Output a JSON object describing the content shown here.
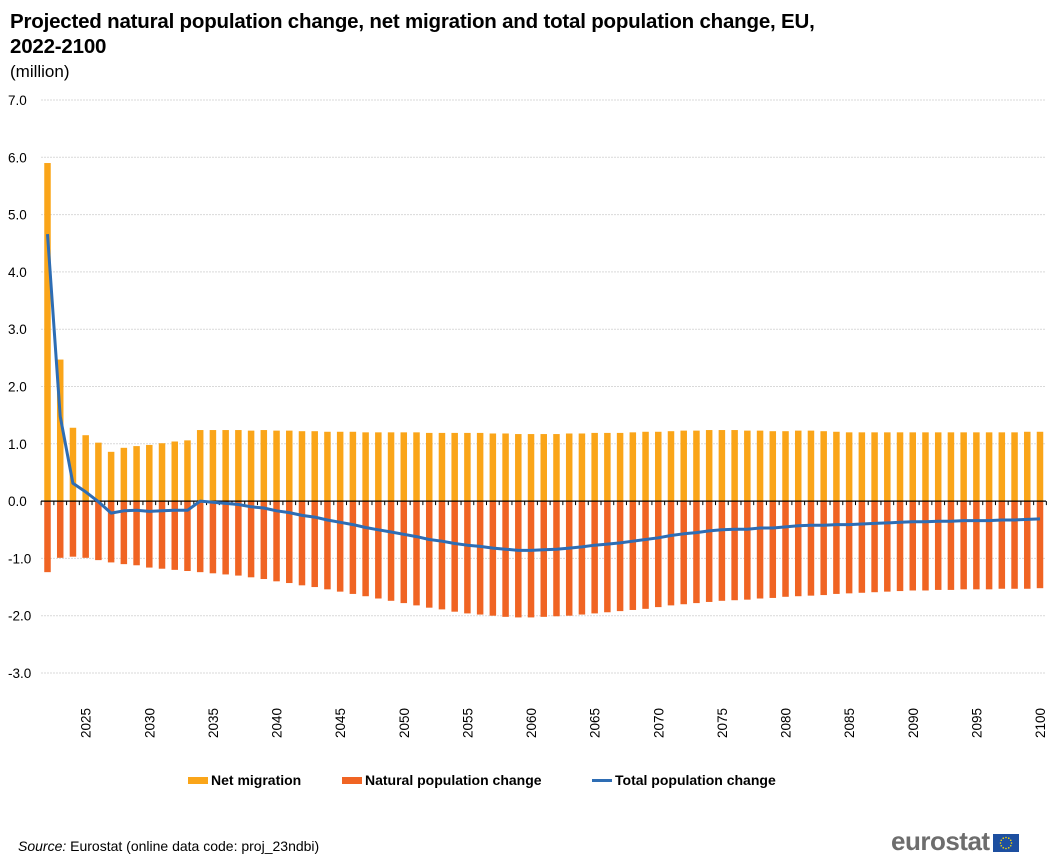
{
  "header": {
    "title": "Projected natural population change, net migration and total population change, EU, 2022-2100",
    "subtitle": "(million)"
  },
  "legend": {
    "items": [
      {
        "label": "Net migration",
        "type": "bar",
        "color": "#faa519"
      },
      {
        "label": "Natural population change",
        "type": "bar",
        "color": "#f06423"
      },
      {
        "label": "Total population change",
        "type": "line",
        "color": "#2e6db4"
      }
    ]
  },
  "footer": {
    "source_label": "Source:",
    "source_text": " Eurostat (online data code: proj_23ndbi)",
    "logo_text": "eurostat"
  },
  "chart_data": {
    "type": "bar",
    "title": "Projected natural population change, net migration and total population change, EU, 2022-2100",
    "subtitle": "(million)",
    "xlabel": "",
    "ylabel": "",
    "ylim": [
      -3.0,
      7.0
    ],
    "yticks": [
      "7.0",
      "6.0",
      "5.0",
      "4.0",
      "3.0",
      "2.0",
      "1.0",
      "0.0",
      "-1.0",
      "-2.0",
      "-3.0"
    ],
    "xtick_labels": [
      "2025",
      "2030",
      "2035",
      "2040",
      "2045",
      "2050",
      "2055",
      "2060",
      "2065",
      "2070",
      "2075",
      "2080",
      "2085",
      "2090",
      "2095",
      "2100"
    ],
    "grid": true,
    "legend_position": "bottom",
    "x": [
      2022,
      2023,
      2024,
      2025,
      2026,
      2027,
      2028,
      2029,
      2030,
      2031,
      2032,
      2033,
      2034,
      2035,
      2036,
      2037,
      2038,
      2039,
      2040,
      2041,
      2042,
      2043,
      2044,
      2045,
      2046,
      2047,
      2048,
      2049,
      2050,
      2051,
      2052,
      2053,
      2054,
      2055,
      2056,
      2057,
      2058,
      2059,
      2060,
      2061,
      2062,
      2063,
      2064,
      2065,
      2066,
      2067,
      2068,
      2069,
      2070,
      2071,
      2072,
      2073,
      2074,
      2075,
      2076,
      2077,
      2078,
      2079,
      2080,
      2081,
      2082,
      2083,
      2084,
      2085,
      2086,
      2087,
      2088,
      2089,
      2090,
      2091,
      2092,
      2093,
      2094,
      2095,
      2096,
      2097,
      2098,
      2099,
      2100
    ],
    "series": [
      {
        "name": "Net migration",
        "type": "bar",
        "color": "#faa519",
        "values": [
          5.9,
          2.47,
          1.28,
          1.15,
          1.02,
          0.86,
          0.93,
          0.96,
          0.98,
          1.01,
          1.04,
          1.06,
          1.24,
          1.24,
          1.24,
          1.24,
          1.23,
          1.24,
          1.23,
          1.23,
          1.22,
          1.22,
          1.21,
          1.21,
          1.21,
          1.2,
          1.2,
          1.2,
          1.2,
          1.2,
          1.19,
          1.19,
          1.19,
          1.19,
          1.19,
          1.18,
          1.18,
          1.17,
          1.17,
          1.17,
          1.17,
          1.18,
          1.18,
          1.19,
          1.19,
          1.19,
          1.2,
          1.21,
          1.21,
          1.22,
          1.23,
          1.23,
          1.24,
          1.24,
          1.24,
          1.23,
          1.23,
          1.22,
          1.22,
          1.23,
          1.23,
          1.22,
          1.21,
          1.2,
          1.2,
          1.2,
          1.2,
          1.2,
          1.2,
          1.2,
          1.2,
          1.2,
          1.2,
          1.2,
          1.2,
          1.2,
          1.2,
          1.21,
          1.21
        ]
      },
      {
        "name": "Natural population change",
        "type": "bar",
        "color": "#f06423",
        "values": [
          -1.24,
          -0.99,
          -0.97,
          -0.99,
          -1.03,
          -1.07,
          -1.1,
          -1.12,
          -1.16,
          -1.18,
          -1.2,
          -1.22,
          -1.24,
          -1.26,
          -1.28,
          -1.3,
          -1.33,
          -1.36,
          -1.4,
          -1.43,
          -1.47,
          -1.5,
          -1.54,
          -1.58,
          -1.62,
          -1.66,
          -1.7,
          -1.74,
          -1.78,
          -1.82,
          -1.86,
          -1.89,
          -1.93,
          -1.96,
          -1.98,
          -2.0,
          -2.02,
          -2.03,
          -2.03,
          -2.02,
          -2.01,
          -2.0,
          -1.98,
          -1.96,
          -1.94,
          -1.92,
          -1.9,
          -1.88,
          -1.85,
          -1.82,
          -1.8,
          -1.78,
          -1.76,
          -1.74,
          -1.73,
          -1.72,
          -1.7,
          -1.69,
          -1.67,
          -1.66,
          -1.65,
          -1.64,
          -1.62,
          -1.61,
          -1.6,
          -1.59,
          -1.58,
          -1.57,
          -1.56,
          -1.56,
          -1.55,
          -1.55,
          -1.54,
          -1.54,
          -1.54,
          -1.53,
          -1.53,
          -1.53,
          -1.52
        ]
      },
      {
        "name": "Total population change",
        "type": "line",
        "color": "#2e6db4",
        "values": [
          4.66,
          1.48,
          0.31,
          0.16,
          -0.01,
          -0.21,
          -0.17,
          -0.16,
          -0.18,
          -0.17,
          -0.16,
          -0.16,
          0.0,
          -0.02,
          -0.04,
          -0.06,
          -0.1,
          -0.12,
          -0.17,
          -0.2,
          -0.25,
          -0.28,
          -0.33,
          -0.37,
          -0.41,
          -0.46,
          -0.5,
          -0.54,
          -0.58,
          -0.62,
          -0.67,
          -0.7,
          -0.74,
          -0.77,
          -0.79,
          -0.82,
          -0.84,
          -0.86,
          -0.86,
          -0.85,
          -0.84,
          -0.82,
          -0.8,
          -0.77,
          -0.75,
          -0.73,
          -0.7,
          -0.67,
          -0.64,
          -0.6,
          -0.57,
          -0.55,
          -0.52,
          -0.5,
          -0.49,
          -0.49,
          -0.47,
          -0.47,
          -0.45,
          -0.43,
          -0.42,
          -0.42,
          -0.41,
          -0.41,
          -0.4,
          -0.39,
          -0.38,
          -0.37,
          -0.36,
          -0.36,
          -0.35,
          -0.35,
          -0.34,
          -0.34,
          -0.34,
          -0.33,
          -0.33,
          -0.32,
          -0.31
        ]
      }
    ]
  }
}
